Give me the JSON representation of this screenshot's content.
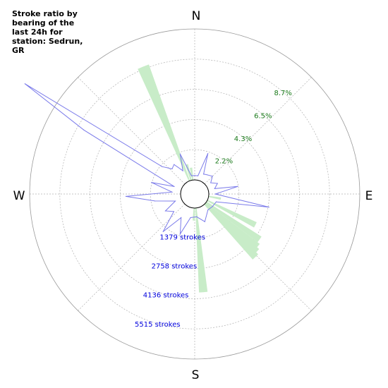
{
  "chart_data": {
    "type": "polar",
    "title": "Stroke ratio by bearing of the last 24h for station: Sedrun, GR",
    "directions": [
      "N",
      "E",
      "S",
      "W"
    ],
    "percent_ticks": [
      "2.2%",
      "4.3%",
      "6.5%",
      "8.7%"
    ],
    "percent_ticks_values": [
      2.2,
      4.3,
      6.5,
      8.7
    ],
    "stroke_ticks": [
      "1379 strokes",
      "2758 strokes",
      "4136 strokes",
      "5515 strokes"
    ],
    "stroke_ticks_values": [
      1379,
      2758,
      4136,
      5515
    ],
    "percent_max": 10.9,
    "strokes_max": 6894,
    "grid": true,
    "colors": {
      "ratio": "#c8ecc8",
      "strokes": "#7b7bea",
      "grid": "#b0b0b0"
    },
    "series": [
      {
        "name": "ratio",
        "kind": "bar",
        "bar_width_deg": 5,
        "points": [
          {
            "bearing": 338,
            "value": 8.9
          },
          {
            "bearing": 345,
            "value": 1.2
          },
          {
            "bearing": 352,
            "value": 0.9
          },
          {
            "bearing": 100,
            "value": 0.9
          },
          {
            "bearing": 117,
            "value": 3.9
          },
          {
            "bearing": 125,
            "value": 4.7
          },
          {
            "bearing": 130,
            "value": 4.9
          },
          {
            "bearing": 133,
            "value": 5.1
          },
          {
            "bearing": 136,
            "value": 5.3
          },
          {
            "bearing": 175,
            "value": 6.1
          },
          {
            "bearing": 182,
            "value": 0.9
          }
        ]
      },
      {
        "name": "strokes",
        "kind": "line",
        "points": [
          {
            "bearing": 0,
            "value": 200
          },
          {
            "bearing": 10,
            "value": 200
          },
          {
            "bearing": 18,
            "value": 1300
          },
          {
            "bearing": 24,
            "value": 350
          },
          {
            "bearing": 33,
            "value": 400
          },
          {
            "bearing": 45,
            "value": 500
          },
          {
            "bearing": 55,
            "value": 250
          },
          {
            "bearing": 65,
            "value": 500
          },
          {
            "bearing": 75,
            "value": 300
          },
          {
            "bearing": 80,
            "value": 1350
          },
          {
            "bearing": 90,
            "value": 300
          },
          {
            "bearing": 100,
            "value": 2800
          },
          {
            "bearing": 110,
            "value": 400
          },
          {
            "bearing": 125,
            "value": 350
          },
          {
            "bearing": 140,
            "value": 300
          },
          {
            "bearing": 160,
            "value": 700
          },
          {
            "bearing": 175,
            "value": 400
          },
          {
            "bearing": 190,
            "value": 450
          },
          {
            "bearing": 200,
            "value": 1300
          },
          {
            "bearing": 210,
            "value": 600
          },
          {
            "bearing": 220,
            "value": 1600
          },
          {
            "bearing": 230,
            "value": 600
          },
          {
            "bearing": 240,
            "value": 900
          },
          {
            "bearing": 250,
            "value": 300
          },
          {
            "bearing": 260,
            "value": 1200
          },
          {
            "bearing": 268,
            "value": 2500
          },
          {
            "bearing": 275,
            "value": 400
          },
          {
            "bearing": 285,
            "value": 1400
          },
          {
            "bearing": 290,
            "value": 350
          },
          {
            "bearing": 300,
            "value": 5200
          },
          {
            "bearing": 303,
            "value": 8600
          },
          {
            "bearing": 310,
            "value": 1300
          },
          {
            "bearing": 318,
            "value": 900
          },
          {
            "bearing": 325,
            "value": 1000
          },
          {
            "bearing": 333,
            "value": 550
          },
          {
            "bearing": 340,
            "value": 1300
          },
          {
            "bearing": 350,
            "value": 200
          }
        ]
      }
    ]
  }
}
